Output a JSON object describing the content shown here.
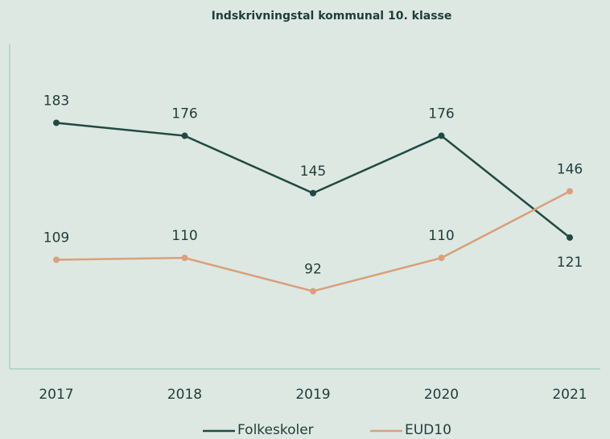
{
  "chart_data": {
    "type": "line",
    "title": "Indskrivningstal kommunal 10. klasse",
    "categories": [
      "2017",
      "2018",
      "2019",
      "2020",
      "2021"
    ],
    "series": [
      {
        "name": "Folkeskoler",
        "color": "#1f4a42",
        "values": [
          183,
          176,
          145,
          176,
          121
        ]
      },
      {
        "name": "EUD10",
        "color": "#d9a07a",
        "values": [
          109,
          110,
          92,
          110,
          146
        ]
      }
    ],
    "ylim": [
      50,
      225
    ]
  }
}
